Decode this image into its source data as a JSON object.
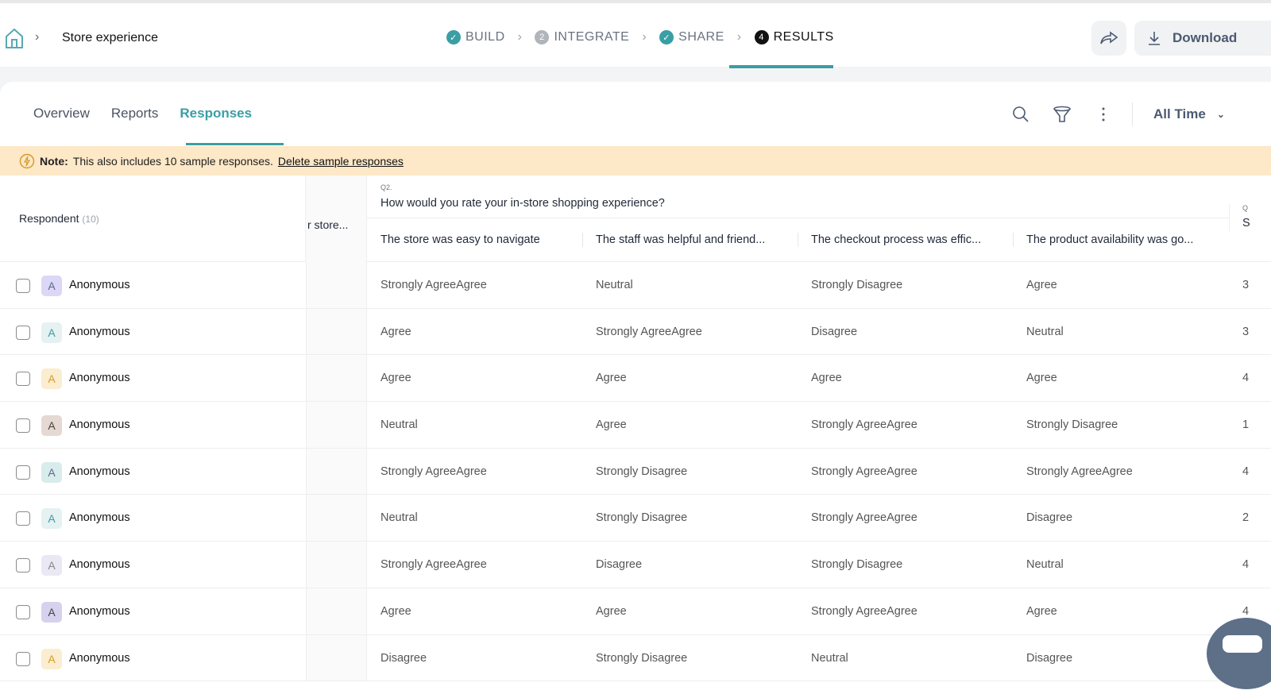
{
  "header": {
    "breadcrumb": "Store experience",
    "steps": [
      {
        "label": "BUILD",
        "state": "done"
      },
      {
        "label": "INTEGRATE",
        "state": "2"
      },
      {
        "label": "SHARE",
        "state": "done"
      },
      {
        "label": "RESULTS",
        "state": "4"
      }
    ],
    "download_label": "Download"
  },
  "tabs": [
    "Overview",
    "Reports",
    "Responses"
  ],
  "toolbar": {
    "range": "All Time"
  },
  "banner": {
    "note_bold": "Note:",
    "note_text": "This also includes 10 sample responses.",
    "link": "Delete sample responses"
  },
  "table": {
    "respondent_header": "Respondent",
    "respondent_count": "(10)",
    "prev_col": "r store...",
    "question_label": "Q2.",
    "question_text": "How would you rate your in-store shopping experience?",
    "subcolumns": [
      "The store was easy to navigate",
      "The staff was helpful and friend...",
      "The checkout process was effic...",
      "The product availability was go..."
    ],
    "rows": [
      {
        "name": "Anonymous",
        "avatar": "A",
        "bg": "#dcd6f7",
        "fg": "#5a6b85",
        "cells": [
          "Strongly AgreeAgree",
          "Neutral",
          "Strongly Disagree",
          "Agree"
        ],
        "next": "3"
      },
      {
        "name": "Anonymous",
        "avatar": "A",
        "bg": "#e6f1f1",
        "fg": "#3a9ea5",
        "cells": [
          "Agree",
          "Strongly AgreeAgree",
          "Disagree",
          "Neutral"
        ],
        "next": "3"
      },
      {
        "name": "Anonymous",
        "avatar": "A",
        "bg": "#fbedcf",
        "fg": "#d69a2d",
        "cells": [
          "Agree",
          "Agree",
          "Agree",
          "Agree"
        ],
        "next": "4"
      },
      {
        "name": "Anonymous",
        "avatar": "A",
        "bg": "#e6d8d2",
        "fg": "#444",
        "cells": [
          "Neutral",
          "Agree",
          "Strongly AgreeAgree",
          "Strongly Disagree"
        ],
        "next": "1"
      },
      {
        "name": "Anonymous",
        "avatar": "A",
        "bg": "#d8ecec",
        "fg": "#5a6b85",
        "cells": [
          "Strongly AgreeAgree",
          "Strongly Disagree",
          "Strongly AgreeAgree",
          "Strongly AgreeAgree"
        ],
        "next": "4"
      },
      {
        "name": "Anonymous",
        "avatar": "A",
        "bg": "#e6f1f1",
        "fg": "#3a9ea5",
        "cells": [
          "Neutral",
          "Strongly Disagree",
          "Strongly AgreeAgree",
          "Disagree"
        ],
        "next": "2"
      },
      {
        "name": "Anonymous",
        "avatar": "A",
        "bg": "#ebe8f5",
        "fg": "#888",
        "cells": [
          "Strongly AgreeAgree",
          "Disagree",
          "Strongly Disagree",
          "Neutral"
        ],
        "next": "4"
      },
      {
        "name": "Anonymous",
        "avatar": "A",
        "bg": "#d6d2ee",
        "fg": "#444",
        "cells": [
          "Agree",
          "Agree",
          "Strongly AgreeAgree",
          "Agree"
        ],
        "next": "4"
      },
      {
        "name": "Anonymous",
        "avatar": "A",
        "bg": "#fbedcf",
        "fg": "#d69a2d",
        "cells": [
          "Disagree",
          "Strongly Disagree",
          "Neutral",
          "Disagree"
        ],
        "next": ""
      }
    ]
  },
  "colors": {
    "accent": "#3a9ea5",
    "banner": "#fde8c7"
  }
}
